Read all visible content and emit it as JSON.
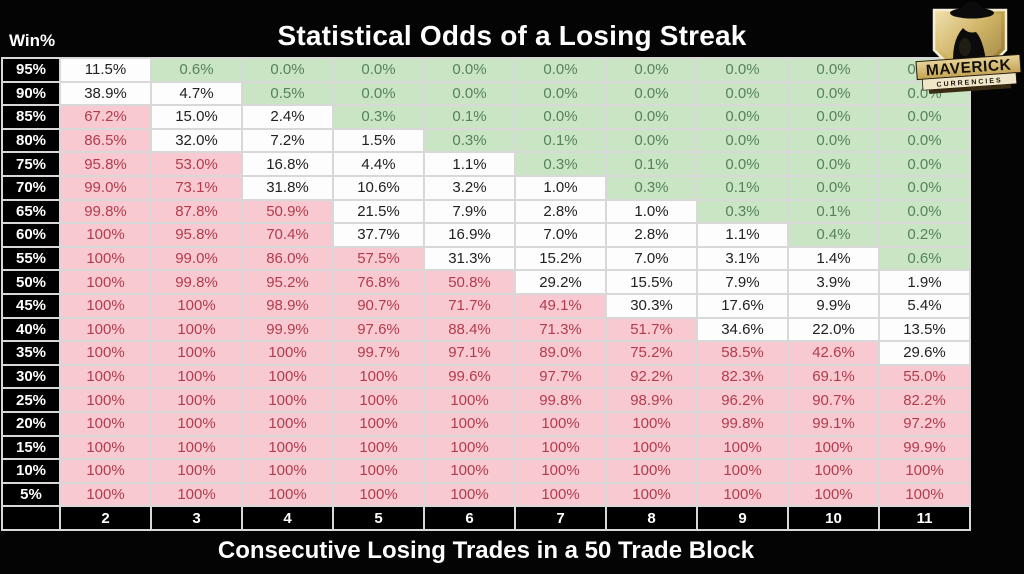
{
  "title": "Statistical Odds of a Losing Streak",
  "corner_label": "Win%",
  "footer_title": "Consecutive Losing Trades in a 50 Trade Block",
  "logo": {
    "line1": "MAVERICK",
    "line2": "CURRENCIES"
  },
  "colors": {
    "background": "#000000",
    "header_text": "#ffffff",
    "grid_border": "#d8d8d8",
    "green_fill": "#c9e5c4",
    "green_text": "#56825a",
    "pink_fill": "#f8c9d0",
    "pink_text": "#b13c4e",
    "white_fill": "#fdfdfd",
    "logo_gold": "#c9a94f"
  },
  "chart_data": {
    "type": "heatmap",
    "title": "Statistical Odds of a Losing Streak",
    "xlabel": "Consecutive Losing Trades in a 50 Trade Block",
    "ylabel": "Win%",
    "legend_position": "none",
    "columns": [
      "2",
      "3",
      "4",
      "5",
      "6",
      "7",
      "8",
      "9",
      "10",
      "11"
    ],
    "row_labels": [
      "95%",
      "90%",
      "85%",
      "80%",
      "75%",
      "70%",
      "65%",
      "60%",
      "55%",
      "50%",
      "45%",
      "40%",
      "35%",
      "30%",
      "25%",
      "20%",
      "15%",
      "10%",
      "5%"
    ],
    "values": [
      [
        "11.5%",
        "0.6%",
        "0.0%",
        "0.0%",
        "0.0%",
        "0.0%",
        "0.0%",
        "0.0%",
        "0.0%",
        "0.0%"
      ],
      [
        "38.9%",
        "4.7%",
        "0.5%",
        "0.0%",
        "0.0%",
        "0.0%",
        "0.0%",
        "0.0%",
        "0.0%",
        "0.0%"
      ],
      [
        "67.2%",
        "15.0%",
        "2.4%",
        "0.3%",
        "0.1%",
        "0.0%",
        "0.0%",
        "0.0%",
        "0.0%",
        "0.0%"
      ],
      [
        "86.5%",
        "32.0%",
        "7.2%",
        "1.5%",
        "0.3%",
        "0.1%",
        "0.0%",
        "0.0%",
        "0.0%",
        "0.0%"
      ],
      [
        "95.8%",
        "53.0%",
        "16.8%",
        "4.4%",
        "1.1%",
        "0.3%",
        "0.1%",
        "0.0%",
        "0.0%",
        "0.0%"
      ],
      [
        "99.0%",
        "73.1%",
        "31.8%",
        "10.6%",
        "3.2%",
        "1.0%",
        "0.3%",
        "0.1%",
        "0.0%",
        "0.0%"
      ],
      [
        "99.8%",
        "87.8%",
        "50.9%",
        "21.5%",
        "7.9%",
        "2.8%",
        "1.0%",
        "0.3%",
        "0.1%",
        "0.0%"
      ],
      [
        "100%",
        "95.8%",
        "70.4%",
        "37.7%",
        "16.9%",
        "7.0%",
        "2.8%",
        "1.1%",
        "0.4%",
        "0.2%"
      ],
      [
        "100%",
        "99.0%",
        "86.0%",
        "57.5%",
        "31.3%",
        "15.2%",
        "7.0%",
        "3.1%",
        "1.4%",
        "0.6%"
      ],
      [
        "100%",
        "99.8%",
        "95.2%",
        "76.8%",
        "50.8%",
        "29.2%",
        "15.5%",
        "7.9%",
        "3.9%",
        "1.9%"
      ],
      [
        "100%",
        "100%",
        "98.9%",
        "90.7%",
        "71.7%",
        "49.1%",
        "30.3%",
        "17.6%",
        "9.9%",
        "5.4%"
      ],
      [
        "100%",
        "100%",
        "99.9%",
        "97.6%",
        "88.4%",
        "71.3%",
        "51.7%",
        "34.6%",
        "22.0%",
        "13.5%"
      ],
      [
        "100%",
        "100%",
        "100%",
        "99.7%",
        "97.1%",
        "89.0%",
        "75.2%",
        "58.5%",
        "42.6%",
        "29.6%"
      ],
      [
        "100%",
        "100%",
        "100%",
        "100%",
        "99.6%",
        "97.7%",
        "92.2%",
        "82.3%",
        "69.1%",
        "55.0%"
      ],
      [
        "100%",
        "100%",
        "100%",
        "100%",
        "100%",
        "99.8%",
        "98.9%",
        "96.2%",
        "90.7%",
        "82.2%"
      ],
      [
        "100%",
        "100%",
        "100%",
        "100%",
        "100%",
        "100%",
        "100%",
        "99.8%",
        "99.1%",
        "97.2%"
      ],
      [
        "100%",
        "100%",
        "100%",
        "100%",
        "100%",
        "100%",
        "100%",
        "100%",
        "100%",
        "99.9%"
      ],
      [
        "100%",
        "100%",
        "100%",
        "100%",
        "100%",
        "100%",
        "100%",
        "100%",
        "100%",
        "100%"
      ],
      [
        "100%",
        "100%",
        "100%",
        "100%",
        "100%",
        "100%",
        "100%",
        "100%",
        "100%",
        "100%"
      ]
    ],
    "cell_colors": [
      [
        "white",
        "green",
        "green",
        "green",
        "green",
        "green",
        "green",
        "green",
        "green",
        "green"
      ],
      [
        "white",
        "white",
        "green",
        "green",
        "green",
        "green",
        "green",
        "green",
        "green",
        "green"
      ],
      [
        "pink",
        "white",
        "white",
        "green",
        "green",
        "green",
        "green",
        "green",
        "green",
        "green"
      ],
      [
        "pink",
        "white",
        "white",
        "white",
        "green",
        "green",
        "green",
        "green",
        "green",
        "green"
      ],
      [
        "pink",
        "pink",
        "white",
        "white",
        "white",
        "green",
        "green",
        "green",
        "green",
        "green"
      ],
      [
        "pink",
        "pink",
        "white",
        "white",
        "white",
        "white",
        "green",
        "green",
        "green",
        "green"
      ],
      [
        "pink",
        "pink",
        "pink",
        "white",
        "white",
        "white",
        "white",
        "green",
        "green",
        "green"
      ],
      [
        "pink",
        "pink",
        "pink",
        "white",
        "white",
        "white",
        "white",
        "white",
        "green",
        "green"
      ],
      [
        "pink",
        "pink",
        "pink",
        "pink",
        "white",
        "white",
        "white",
        "white",
        "white",
        "green"
      ],
      [
        "pink",
        "pink",
        "pink",
        "pink",
        "pink",
        "white",
        "white",
        "white",
        "white",
        "white"
      ],
      [
        "pink",
        "pink",
        "pink",
        "pink",
        "pink",
        "pink",
        "white",
        "white",
        "white",
        "white"
      ],
      [
        "pink",
        "pink",
        "pink",
        "pink",
        "pink",
        "pink",
        "pink",
        "white",
        "white",
        "white"
      ],
      [
        "pink",
        "pink",
        "pink",
        "pink",
        "pink",
        "pink",
        "pink",
        "pink",
        "pink",
        "white"
      ],
      [
        "pink",
        "pink",
        "pink",
        "pink",
        "pink",
        "pink",
        "pink",
        "pink",
        "pink",
        "pink"
      ],
      [
        "pink",
        "pink",
        "pink",
        "pink",
        "pink",
        "pink",
        "pink",
        "pink",
        "pink",
        "pink"
      ],
      [
        "pink",
        "pink",
        "pink",
        "pink",
        "pink",
        "pink",
        "pink",
        "pink",
        "pink",
        "pink"
      ],
      [
        "pink",
        "pink",
        "pink",
        "pink",
        "pink",
        "pink",
        "pink",
        "pink",
        "pink",
        "pink"
      ],
      [
        "pink",
        "pink",
        "pink",
        "pink",
        "pink",
        "pink",
        "pink",
        "pink",
        "pink",
        "pink"
      ],
      [
        "pink",
        "pink",
        "pink",
        "pink",
        "pink",
        "pink",
        "pink",
        "pink",
        "pink",
        "pink"
      ]
    ]
  }
}
